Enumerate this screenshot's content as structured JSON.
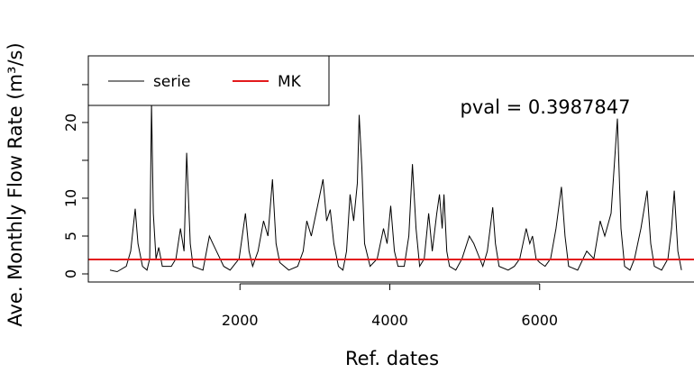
{
  "chart_data": {
    "type": "line",
    "x_label": "Ref. dates",
    "y_label": "Ave. Monthly Flow Rate (m³/s)",
    "annotation": "pval = 0.3987847",
    "xlim": [
      -24,
      8060
    ],
    "ylim": [
      -1.07,
      28.8
    ],
    "xticks": [
      2000,
      4000,
      6000
    ],
    "yticks": [
      0,
      5,
      10,
      20
    ],
    "yticks_unlabeled": [
      15,
      25
    ],
    "legend": "top-left",
    "series": [
      {
        "name": "serie",
        "color": "#000000",
        "x": [
          265,
          361,
          482,
          542,
          602,
          639,
          699,
          759,
          795,
          819,
          843,
          880,
          916,
          964,
          1084,
          1145,
          1205,
          1253,
          1289,
          1337,
          1374,
          1506,
          1591,
          1639,
          1687,
          1783,
          1868,
          1988,
          2073,
          2121,
          2169,
          2241,
          2314,
          2374,
          2434,
          2482,
          2531,
          2651,
          2771,
          2844,
          2892,
          2952,
          3036,
          3108,
          3157,
          3205,
          3253,
          3314,
          3374,
          3422,
          3470,
          3518,
          3567,
          3591,
          3627,
          3663,
          3736,
          3832,
          3916,
          3964,
          4012,
          4061,
          4109,
          4193,
          4254,
          4302,
          4350,
          4398,
          4459,
          4519,
          4567,
          4627,
          4663,
          4699,
          4723,
          4760,
          4796,
          4880,
          4964,
          5061,
          5121,
          5181,
          5241,
          5302,
          5374,
          5410,
          5458,
          5579,
          5663,
          5735,
          5820,
          5868,
          5904,
          5952,
          6001,
          6073,
          6146,
          6218,
          6290,
          6339,
          6387,
          6507,
          6628,
          6724,
          6808,
          6869,
          6953,
          7037,
          7085,
          7134,
          7206,
          7266,
          7351,
          7435,
          7483,
          7531,
          7628,
          7712,
          7760,
          7796,
          7845,
          7893
        ],
        "values": [
          0.5,
          0.3,
          1,
          3,
          8.6,
          4,
          1,
          0.5,
          2,
          22.5,
          8,
          2,
          3.5,
          1,
          1,
          2,
          6,
          3,
          16,
          4,
          1,
          0.5,
          5,
          4,
          3,
          1,
          0.5,
          2,
          8,
          3,
          1,
          3,
          7,
          5,
          12.5,
          4,
          1.5,
          0.5,
          1,
          3,
          7,
          5,
          9,
          12.5,
          7,
          8.5,
          4,
          1,
          0.5,
          3,
          10.5,
          7,
          12,
          21,
          14,
          4,
          1,
          2,
          6,
          4,
          9,
          3,
          1,
          1,
          5,
          14.5,
          6,
          1,
          2,
          8,
          3,
          8,
          10.5,
          6,
          10.5,
          3,
          1,
          0.5,
          2,
          5,
          4,
          2.5,
          1,
          3,
          8.8,
          4,
          1,
          0.5,
          1,
          2,
          6,
          4,
          5,
          2,
          1.5,
          1,
          2,
          6,
          11.5,
          5,
          1,
          0.5,
          3,
          2,
          7,
          5,
          8,
          20.5,
          6,
          1,
          0.5,
          2,
          6,
          11,
          4,
          1,
          0.5,
          2,
          6,
          11,
          3,
          0.5
        ]
      },
      {
        "name": "MK",
        "color": "#e31a1c",
        "level": 1.9
      }
    ]
  }
}
